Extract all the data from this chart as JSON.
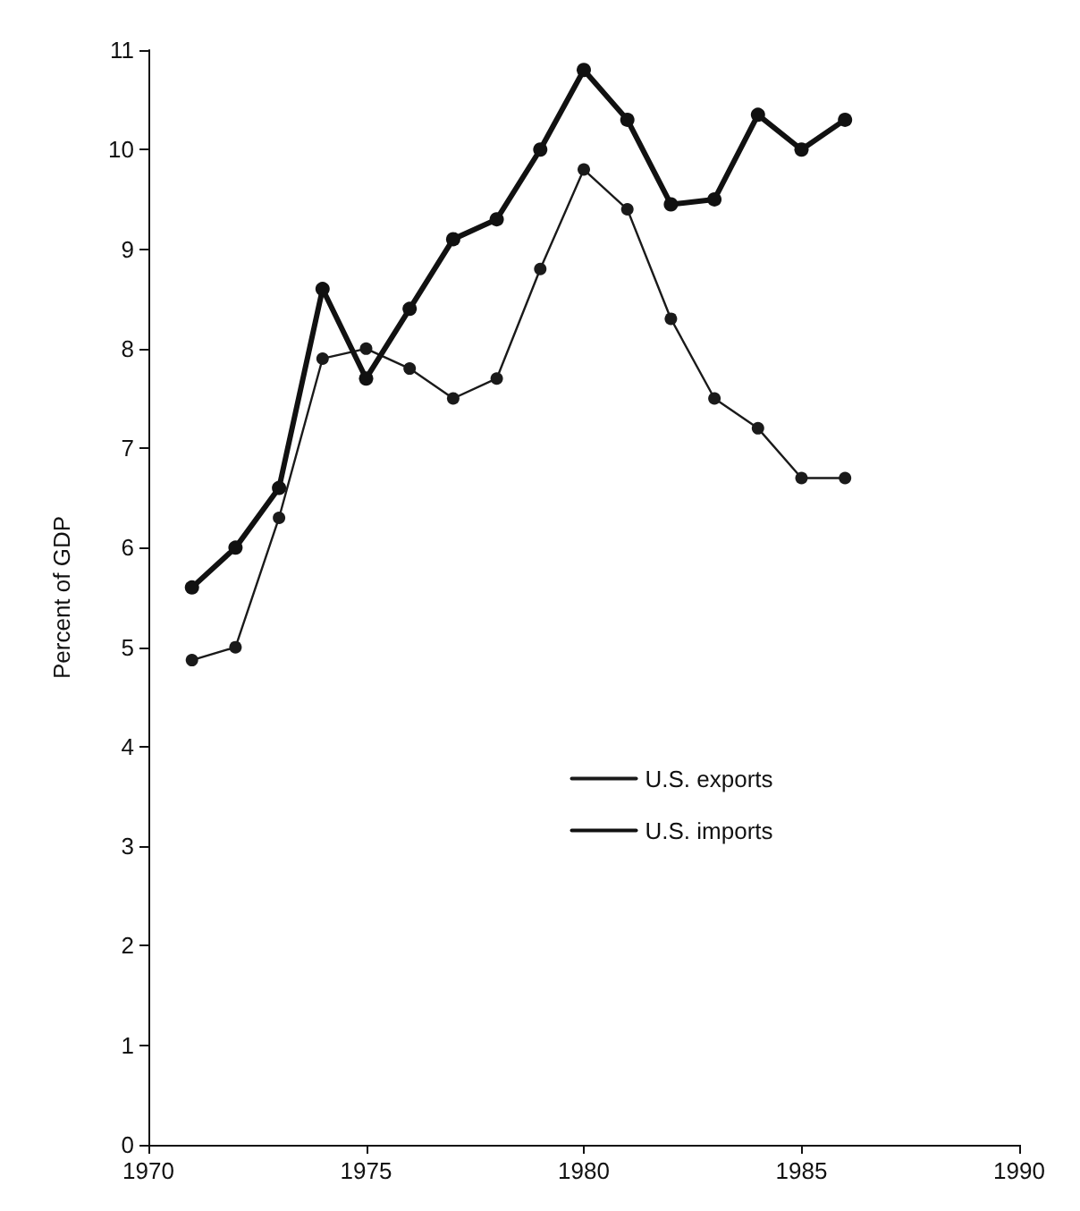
{
  "chart_data": {
    "type": "line",
    "ylabel": "Percent of GDP",
    "x": [
      1971,
      1972,
      1973,
      1974,
      1975,
      1976,
      1977,
      1978,
      1979,
      1980,
      1981,
      1982,
      1983,
      1984,
      1985,
      1986
    ],
    "series": [
      {
        "name": "U.S. exports",
        "color": "#1a1a1a",
        "values": [
          4.87,
          5.0,
          6.3,
          7.9,
          8.0,
          7.8,
          7.5,
          7.7,
          8.8,
          9.8,
          9.4,
          8.3,
          7.5,
          7.2,
          6.7,
          6.7
        ]
      },
      {
        "name": "U.S. imports",
        "color": "#111111",
        "values": [
          5.6,
          6.0,
          6.6,
          8.6,
          7.7,
          8.4,
          9.1,
          9.3,
          10.0,
          10.8,
          10.3,
          9.45,
          9.5,
          10.35,
          10.0,
          10.3
        ]
      }
    ],
    "xlim": [
      1970,
      1990
    ],
    "xticks": [
      1970,
      1975,
      1980,
      1985,
      1990
    ],
    "ylim": [
      0,
      11
    ],
    "yticks": [
      0,
      1,
      2,
      3,
      4,
      5,
      6,
      7,
      8,
      9,
      10,
      11
    ],
    "grid": false,
    "legend": "right",
    "marker": "circle",
    "line_style": "solid"
  }
}
